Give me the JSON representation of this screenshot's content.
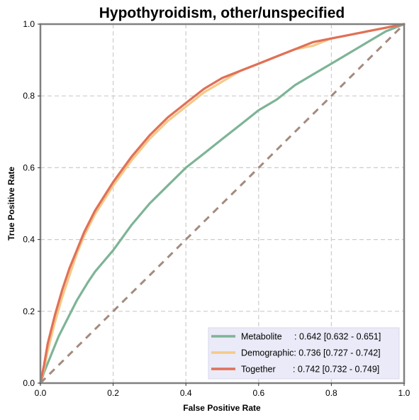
{
  "chart_data": {
    "type": "line",
    "title": "Hypothyroidism, other/unspecified",
    "xlabel": "False Positive Rate",
    "ylabel": "True Positive Rate",
    "xlim": [
      0,
      1
    ],
    "ylim": [
      0,
      1
    ],
    "x_ticks": [
      "0.0",
      "0.2",
      "0.4",
      "0.6",
      "0.8",
      "1.0"
    ],
    "y_ticks": [
      "0.0",
      "0.2",
      "0.4",
      "0.6",
      "0.8",
      "1.0"
    ],
    "grid": true,
    "legend_position": "bottom-right",
    "series": [
      {
        "name": "Metabolite",
        "label": "Metabolite     : 0.642 [0.632 - 0.651]",
        "color": "#7db496",
        "points": [
          [
            0,
            0
          ],
          [
            0.01,
            0.03
          ],
          [
            0.03,
            0.08
          ],
          [
            0.05,
            0.13
          ],
          [
            0.08,
            0.19
          ],
          [
            0.1,
            0.23
          ],
          [
            0.13,
            0.28
          ],
          [
            0.15,
            0.31
          ],
          [
            0.2,
            0.37
          ],
          [
            0.25,
            0.44
          ],
          [
            0.3,
            0.5
          ],
          [
            0.35,
            0.55
          ],
          [
            0.4,
            0.6
          ],
          [
            0.45,
            0.64
          ],
          [
            0.5,
            0.68
          ],
          [
            0.55,
            0.72
          ],
          [
            0.6,
            0.76
          ],
          [
            0.65,
            0.79
          ],
          [
            0.7,
            0.83
          ],
          [
            0.75,
            0.86
          ],
          [
            0.8,
            0.89
          ],
          [
            0.85,
            0.92
          ],
          [
            0.9,
            0.95
          ],
          [
            0.95,
            0.98
          ],
          [
            1,
            1
          ]
        ]
      },
      {
        "name": "Demographic",
        "label": "Demographic: 0.736 [0.727 - 0.742]",
        "color": "#f5c987",
        "points": [
          [
            0,
            0
          ],
          [
            0.01,
            0.04
          ],
          [
            0.02,
            0.09
          ],
          [
            0.04,
            0.17
          ],
          [
            0.06,
            0.24
          ],
          [
            0.08,
            0.3
          ],
          [
            0.1,
            0.36
          ],
          [
            0.12,
            0.41
          ],
          [
            0.15,
            0.47
          ],
          [
            0.2,
            0.55
          ],
          [
            0.25,
            0.62
          ],
          [
            0.3,
            0.68
          ],
          [
            0.35,
            0.73
          ],
          [
            0.4,
            0.77
          ],
          [
            0.45,
            0.81
          ],
          [
            0.5,
            0.84
          ],
          [
            0.55,
            0.87
          ],
          [
            0.6,
            0.89
          ],
          [
            0.65,
            0.91
          ],
          [
            0.7,
            0.93
          ],
          [
            0.75,
            0.94
          ],
          [
            0.8,
            0.96
          ],
          [
            0.85,
            0.97
          ],
          [
            0.9,
            0.98
          ],
          [
            0.95,
            0.99
          ],
          [
            1,
            1
          ]
        ]
      },
      {
        "name": "Together",
        "label": "Together       : 0.742 [0.732 - 0.749]",
        "color": "#e07058",
        "points": [
          [
            0,
            0
          ],
          [
            0.01,
            0.05
          ],
          [
            0.02,
            0.11
          ],
          [
            0.04,
            0.19
          ],
          [
            0.06,
            0.26
          ],
          [
            0.08,
            0.32
          ],
          [
            0.1,
            0.37
          ],
          [
            0.12,
            0.42
          ],
          [
            0.15,
            0.48
          ],
          [
            0.2,
            0.56
          ],
          [
            0.25,
            0.63
          ],
          [
            0.3,
            0.69
          ],
          [
            0.35,
            0.74
          ],
          [
            0.4,
            0.78
          ],
          [
            0.45,
            0.82
          ],
          [
            0.5,
            0.85
          ],
          [
            0.55,
            0.87
          ],
          [
            0.6,
            0.89
          ],
          [
            0.65,
            0.91
          ],
          [
            0.7,
            0.93
          ],
          [
            0.75,
            0.95
          ],
          [
            0.8,
            0.96
          ],
          [
            0.85,
            0.97
          ],
          [
            0.9,
            0.98
          ],
          [
            0.95,
            0.99
          ],
          [
            1,
            1
          ]
        ]
      },
      {
        "name": "chance",
        "color": "#a58a7e",
        "dashed": true,
        "points": [
          [
            0,
            0
          ],
          [
            1,
            1
          ]
        ]
      }
    ]
  }
}
